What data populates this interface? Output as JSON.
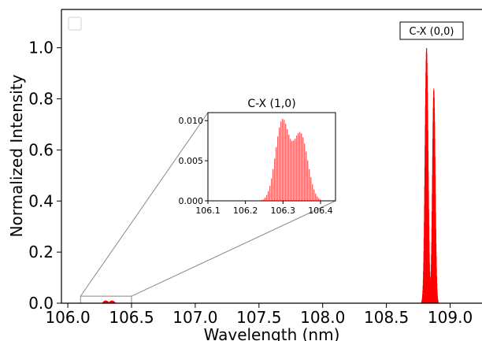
{
  "chart_data": {
    "type": "bar",
    "xlabel": "Wavelength (nm)",
    "ylabel": "Normalized Intensity",
    "xlim": [
      105.95,
      109.25
    ],
    "ylim": [
      0,
      1.15
    ],
    "x_ticks": [
      "106.0",
      "106.5",
      "107.0",
      "107.5",
      "108.0",
      "108.5",
      "109.0"
    ],
    "y_ticks": [
      "0.0",
      "0.2",
      "0.4",
      "0.6",
      "0.8",
      "1.0"
    ],
    "grid": false,
    "legend": "top-left (empty)",
    "color": "#ff0000",
    "annotation": {
      "text": "C-X (0,0)"
    },
    "main_peaks": [
      {
        "center": 108.815,
        "width": 0.012,
        "height": 1.0
      },
      {
        "center": 108.872,
        "width": 0.011,
        "height": 0.84
      }
    ],
    "inset": {
      "title": "C-X (1,0)",
      "xlim": [
        106.1,
        106.44
      ],
      "ylim": [
        0,
        0.011
      ],
      "x_ticks": [
        "106.1",
        "106.2",
        "106.3",
        "106.4"
      ],
      "y_ticks": [
        "0.000",
        "0.005",
        "0.010"
      ],
      "zoom_box": {
        "x": [
          106.1,
          106.5
        ],
        "y": [
          0,
          0.012
        ]
      },
      "peaks": [
        {
          "center": 106.298,
          "width": 0.018,
          "height": 0.0099
        },
        {
          "center": 106.347,
          "width": 0.019,
          "height": 0.0083
        }
      ]
    }
  }
}
